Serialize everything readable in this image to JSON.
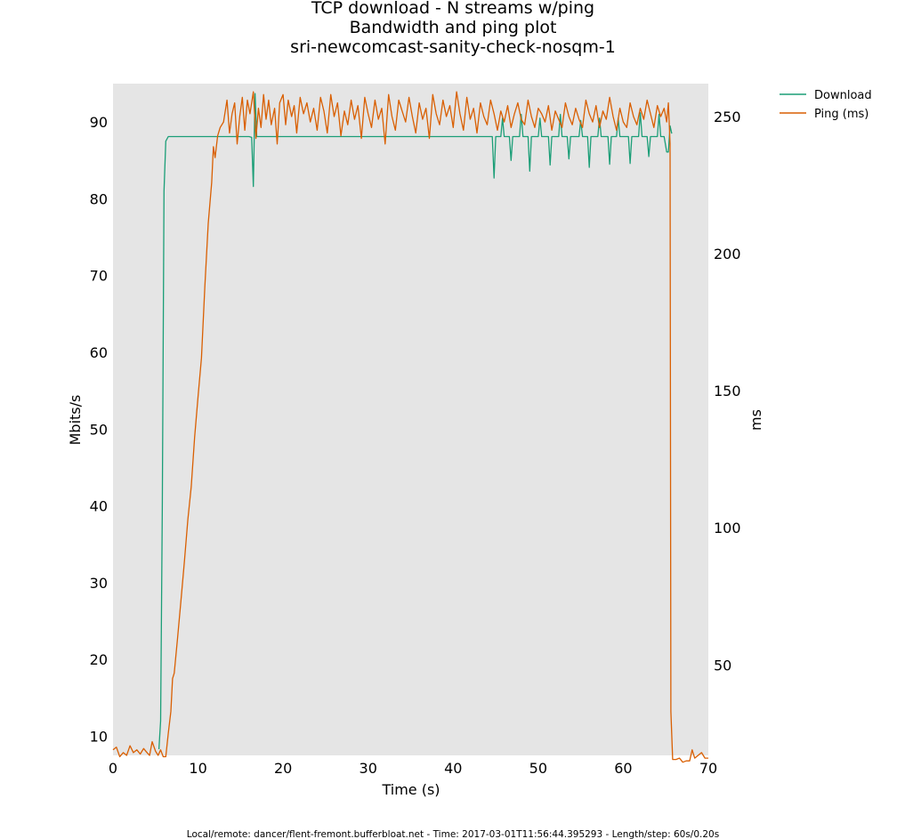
{
  "chart_data": {
    "type": "line",
    "title": [
      "TCP download - N streams w/ping",
      "Bandwidth and ping plot",
      "sri-newcomcast-sanity-check-nosqm-1"
    ],
    "xlabel": "Time (s)",
    "ylabel": "Mbits/s",
    "y2label": "ms",
    "xlim": [
      0,
      70
    ],
    "ylim": [
      7.5,
      95
    ],
    "y2lim": [
      17,
      262
    ],
    "xticks": [
      0,
      10,
      20,
      30,
      40,
      50,
      60,
      70
    ],
    "yticks": [
      10,
      20,
      30,
      40,
      50,
      60,
      70,
      80,
      90
    ],
    "y2ticks": [
      50,
      100,
      150,
      200,
      250
    ],
    "legend_position": "outside-top-right",
    "background": "#e5e5e5",
    "footer": "Local/remote: dancer/flent-fremont.bufferbloat.net - Time: 2017-03-01T11:56:44.395293 - Length/step: 60s/0.20s",
    "series": [
      {
        "name": "Download",
        "axis": "left",
        "color": "#1b9e77",
        "points": [
          [
            5.4,
            8.3
          ],
          [
            5.6,
            12
          ],
          [
            5.8,
            40
          ],
          [
            6.0,
            81
          ],
          [
            6.2,
            87.5
          ],
          [
            6.5,
            88.1
          ],
          [
            8,
            88.1
          ],
          [
            10,
            88.1
          ],
          [
            12,
            88.1
          ],
          [
            14,
            88.1
          ],
          [
            16,
            88.1
          ],
          [
            16.3,
            88.0
          ],
          [
            16.5,
            81.6
          ],
          [
            16.7,
            93.7
          ],
          [
            16.9,
            88.1
          ],
          [
            20,
            88.1
          ],
          [
            25,
            88.1
          ],
          [
            30,
            88.1
          ],
          [
            35,
            88.1
          ],
          [
            40,
            88.1
          ],
          [
            43,
            88.1
          ],
          [
            44.6,
            88.1
          ],
          [
            44.8,
            82.7
          ],
          [
            45.0,
            88.1
          ],
          [
            45.6,
            88.1
          ],
          [
            45.8,
            90.5
          ],
          [
            46.0,
            88.1
          ],
          [
            46.6,
            88.1
          ],
          [
            46.8,
            85
          ],
          [
            47.0,
            88.1
          ],
          [
            47.8,
            88.1
          ],
          [
            48.0,
            91
          ],
          [
            48.2,
            88.1
          ],
          [
            48.8,
            88.1
          ],
          [
            49.0,
            83.6
          ],
          [
            49.2,
            88.1
          ],
          [
            50.0,
            88.1
          ],
          [
            50.2,
            90.5
          ],
          [
            50.4,
            88.1
          ],
          [
            51.2,
            88.1
          ],
          [
            51.4,
            84.4
          ],
          [
            51.6,
            88.1
          ],
          [
            52.4,
            88.1
          ],
          [
            52.6,
            91
          ],
          [
            52.8,
            88.1
          ],
          [
            53.4,
            88.1
          ],
          [
            53.6,
            85.2
          ],
          [
            53.8,
            88.1
          ],
          [
            54.8,
            88.1
          ],
          [
            55.0,
            90.2
          ],
          [
            55.2,
            88.1
          ],
          [
            55.8,
            88.1
          ],
          [
            56.0,
            84.1
          ],
          [
            56.2,
            88.1
          ],
          [
            57.0,
            88.1
          ],
          [
            57.2,
            90.5
          ],
          [
            57.4,
            88.1
          ],
          [
            58.2,
            88.1
          ],
          [
            58.4,
            84.5
          ],
          [
            58.6,
            88.1
          ],
          [
            59.2,
            88.1
          ],
          [
            59.4,
            90.5
          ],
          [
            59.6,
            88.1
          ],
          [
            60.6,
            88.1
          ],
          [
            60.8,
            84.6
          ],
          [
            61.0,
            88.1
          ],
          [
            61.8,
            88.1
          ],
          [
            62.0,
            91.2
          ],
          [
            62.2,
            88.1
          ],
          [
            62.8,
            88.1
          ],
          [
            63.0,
            85.5
          ],
          [
            63.2,
            88.1
          ],
          [
            64.0,
            88.1
          ],
          [
            64.2,
            91
          ],
          [
            64.4,
            88.1
          ],
          [
            64.8,
            88.1
          ],
          [
            65.1,
            86.1
          ],
          [
            65.3,
            86.1
          ],
          [
            65.5,
            89.5
          ],
          [
            65.7,
            88.5
          ]
        ]
      },
      {
        "name": "Ping (ms)",
        "axis": "right",
        "color": "#d95f02",
        "points": [
          [
            0,
            19
          ],
          [
            0.4,
            20
          ],
          [
            0.8,
            16.5
          ],
          [
            1.2,
            18
          ],
          [
            1.6,
            17
          ],
          [
            2.0,
            20.5
          ],
          [
            2.4,
            18
          ],
          [
            2.8,
            19
          ],
          [
            3.2,
            17.5
          ],
          [
            3.6,
            19.5
          ],
          [
            4.0,
            18
          ],
          [
            4.3,
            17
          ],
          [
            4.6,
            22
          ],
          [
            5.0,
            18.5
          ],
          [
            5.3,
            17
          ],
          [
            5.6,
            19
          ],
          [
            5.9,
            16.5
          ],
          [
            6.2,
            16.5
          ],
          [
            6.5,
            25
          ],
          [
            6.8,
            33
          ],
          [
            7.0,
            45
          ],
          [
            7.2,
            47
          ],
          [
            7.6,
            60
          ],
          [
            8.0,
            74
          ],
          [
            8.4,
            88
          ],
          [
            8.8,
            103
          ],
          [
            9.2,
            115
          ],
          [
            9.6,
            133
          ],
          [
            10.0,
            148
          ],
          [
            10.4,
            162
          ],
          [
            10.8,
            188
          ],
          [
            11.2,
            211
          ],
          [
            11.6,
            226
          ],
          [
            11.8,
            239
          ],
          [
            12.0,
            235
          ],
          [
            12.3,
            243
          ],
          [
            12.6,
            246
          ],
          [
            13,
            248
          ],
          [
            13.4,
            256
          ],
          [
            13.7,
            244
          ],
          [
            14,
            251
          ],
          [
            14.3,
            255
          ],
          [
            14.6,
            240
          ],
          [
            14.9,
            250
          ],
          [
            15.2,
            257
          ],
          [
            15.5,
            245
          ],
          [
            15.8,
            256
          ],
          [
            16.1,
            251
          ],
          [
            16.5,
            259
          ],
          [
            16.8,
            242
          ],
          [
            17.1,
            253
          ],
          [
            17.4,
            246
          ],
          [
            17.7,
            258
          ],
          [
            18,
            249
          ],
          [
            18.3,
            256
          ],
          [
            18.6,
            247
          ],
          [
            19,
            253
          ],
          [
            19.3,
            240
          ],
          [
            19.6,
            255
          ],
          [
            20,
            258
          ],
          [
            20.3,
            247
          ],
          [
            20.6,
            256
          ],
          [
            21,
            250
          ],
          [
            21.3,
            254
          ],
          [
            21.6,
            244
          ],
          [
            22,
            257
          ],
          [
            22.4,
            251
          ],
          [
            22.8,
            255
          ],
          [
            23.2,
            248
          ],
          [
            23.6,
            253
          ],
          [
            24,
            245
          ],
          [
            24.4,
            257
          ],
          [
            24.8,
            252
          ],
          [
            25.2,
            244
          ],
          [
            25.6,
            258
          ],
          [
            26,
            250
          ],
          [
            26.4,
            255
          ],
          [
            26.8,
            243
          ],
          [
            27.2,
            252
          ],
          [
            27.6,
            247
          ],
          [
            28,
            256
          ],
          [
            28.4,
            249
          ],
          [
            28.8,
            254
          ],
          [
            29.2,
            242
          ],
          [
            29.6,
            257
          ],
          [
            30,
            251
          ],
          [
            30.4,
            246
          ],
          [
            30.8,
            256
          ],
          [
            31.2,
            249
          ],
          [
            31.6,
            253
          ],
          [
            32,
            240
          ],
          [
            32.4,
            258
          ],
          [
            32.8,
            250
          ],
          [
            33.2,
            245
          ],
          [
            33.6,
            256
          ],
          [
            34,
            252
          ],
          [
            34.4,
            248
          ],
          [
            34.8,
            257
          ],
          [
            35.2,
            250
          ],
          [
            35.6,
            244
          ],
          [
            36,
            255
          ],
          [
            36.4,
            249
          ],
          [
            36.8,
            253
          ],
          [
            37.2,
            242
          ],
          [
            37.6,
            258
          ],
          [
            38,
            251
          ],
          [
            38.4,
            247
          ],
          [
            38.8,
            256
          ],
          [
            39.2,
            250
          ],
          [
            39.6,
            254
          ],
          [
            40,
            246
          ],
          [
            40.4,
            259
          ],
          [
            40.8,
            251
          ],
          [
            41.2,
            245
          ],
          [
            41.6,
            257
          ],
          [
            42,
            249
          ],
          [
            42.4,
            253
          ],
          [
            42.8,
            244
          ],
          [
            43.2,
            255
          ],
          [
            43.6,
            250
          ],
          [
            44,
            247
          ],
          [
            44.4,
            256
          ],
          [
            44.8,
            251
          ],
          [
            45.2,
            245
          ],
          [
            45.6,
            252
          ],
          [
            46,
            248
          ],
          [
            46.4,
            254
          ],
          [
            46.8,
            246
          ],
          [
            47.2,
            251
          ],
          [
            47.6,
            255
          ],
          [
            48,
            249
          ],
          [
            48.4,
            247
          ],
          [
            48.8,
            256
          ],
          [
            49.2,
            250
          ],
          [
            49.6,
            246
          ],
          [
            50,
            253
          ],
          [
            50.4,
            251
          ],
          [
            50.8,
            248
          ],
          [
            51.2,
            254
          ],
          [
            51.6,
            245
          ],
          [
            52,
            252
          ],
          [
            52.4,
            249
          ],
          [
            52.8,
            246
          ],
          [
            53.2,
            255
          ],
          [
            53.6,
            250
          ],
          [
            54,
            247
          ],
          [
            54.4,
            253
          ],
          [
            54.8,
            249
          ],
          [
            55.2,
            246
          ],
          [
            55.6,
            256
          ],
          [
            56,
            251
          ],
          [
            56.4,
            248
          ],
          [
            56.8,
            254
          ],
          [
            57.2,
            246
          ],
          [
            57.6,
            252
          ],
          [
            58,
            249
          ],
          [
            58.4,
            257
          ],
          [
            58.8,
            250
          ],
          [
            59.2,
            245
          ],
          [
            59.6,
            253
          ],
          [
            60,
            248
          ],
          [
            60.4,
            246
          ],
          [
            60.8,
            255
          ],
          [
            61.2,
            250
          ],
          [
            61.6,
            247
          ],
          [
            62,
            253
          ],
          [
            62.4,
            249
          ],
          [
            62.8,
            256
          ],
          [
            63.2,
            251
          ],
          [
            63.6,
            246
          ],
          [
            64,
            254
          ],
          [
            64.4,
            250
          ],
          [
            64.8,
            253
          ],
          [
            65.1,
            248
          ],
          [
            65.3,
            255
          ],
          [
            65.5,
            240
          ],
          [
            65.6,
            33
          ],
          [
            65.8,
            15.5
          ],
          [
            66.2,
            15.5
          ],
          [
            66.6,
            16
          ],
          [
            67,
            14.5
          ],
          [
            67.4,
            15
          ],
          [
            67.8,
            15
          ],
          [
            68.1,
            19
          ],
          [
            68.4,
            16
          ],
          [
            68.8,
            17
          ],
          [
            69.2,
            18
          ],
          [
            69.6,
            16
          ],
          [
            70,
            16
          ]
        ]
      }
    ]
  }
}
